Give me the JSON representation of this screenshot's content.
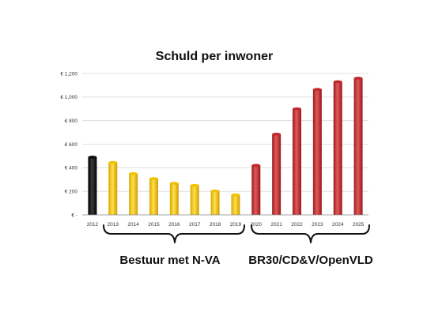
{
  "chart_data": {
    "type": "bar",
    "title": "Schuld per inwoner",
    "categories": [
      "2012",
      "2013",
      "2014",
      "2015",
      "2016",
      "2017",
      "2018",
      "2019",
      "2020",
      "2021",
      "2022",
      "2023",
      "2024",
      "2025"
    ],
    "values": [
      490,
      445,
      350,
      308,
      268,
      250,
      203,
      170,
      420,
      685,
      900,
      1065,
      1130,
      1160
    ],
    "bar_colors": [
      "#0a0a0a",
      "#f2c200",
      "#f2c200",
      "#f2c200",
      "#f2c200",
      "#f2c200",
      "#f2c200",
      "#f2c200",
      "#c0282c",
      "#c0282c",
      "#c0282c",
      "#c0282c",
      "#c0282c",
      "#c0282c"
    ],
    "ylim": [
      0,
      1200
    ],
    "yticks": [
      0,
      200,
      400,
      600,
      800,
      1000,
      1200
    ],
    "ytick_labels": [
      "€ -",
      "€ 200",
      "€ 400",
      "€ 600",
      "€ 800",
      "€ 1,000",
      "€ 1,200"
    ],
    "grid": true,
    "groups": [
      {
        "label": "Bestuur met N-VA",
        "from": "2013",
        "to": "2019"
      },
      {
        "label": "BR30/CD&V/OpenVLD",
        "from": "2020",
        "to": "2025"
      }
    ]
  }
}
